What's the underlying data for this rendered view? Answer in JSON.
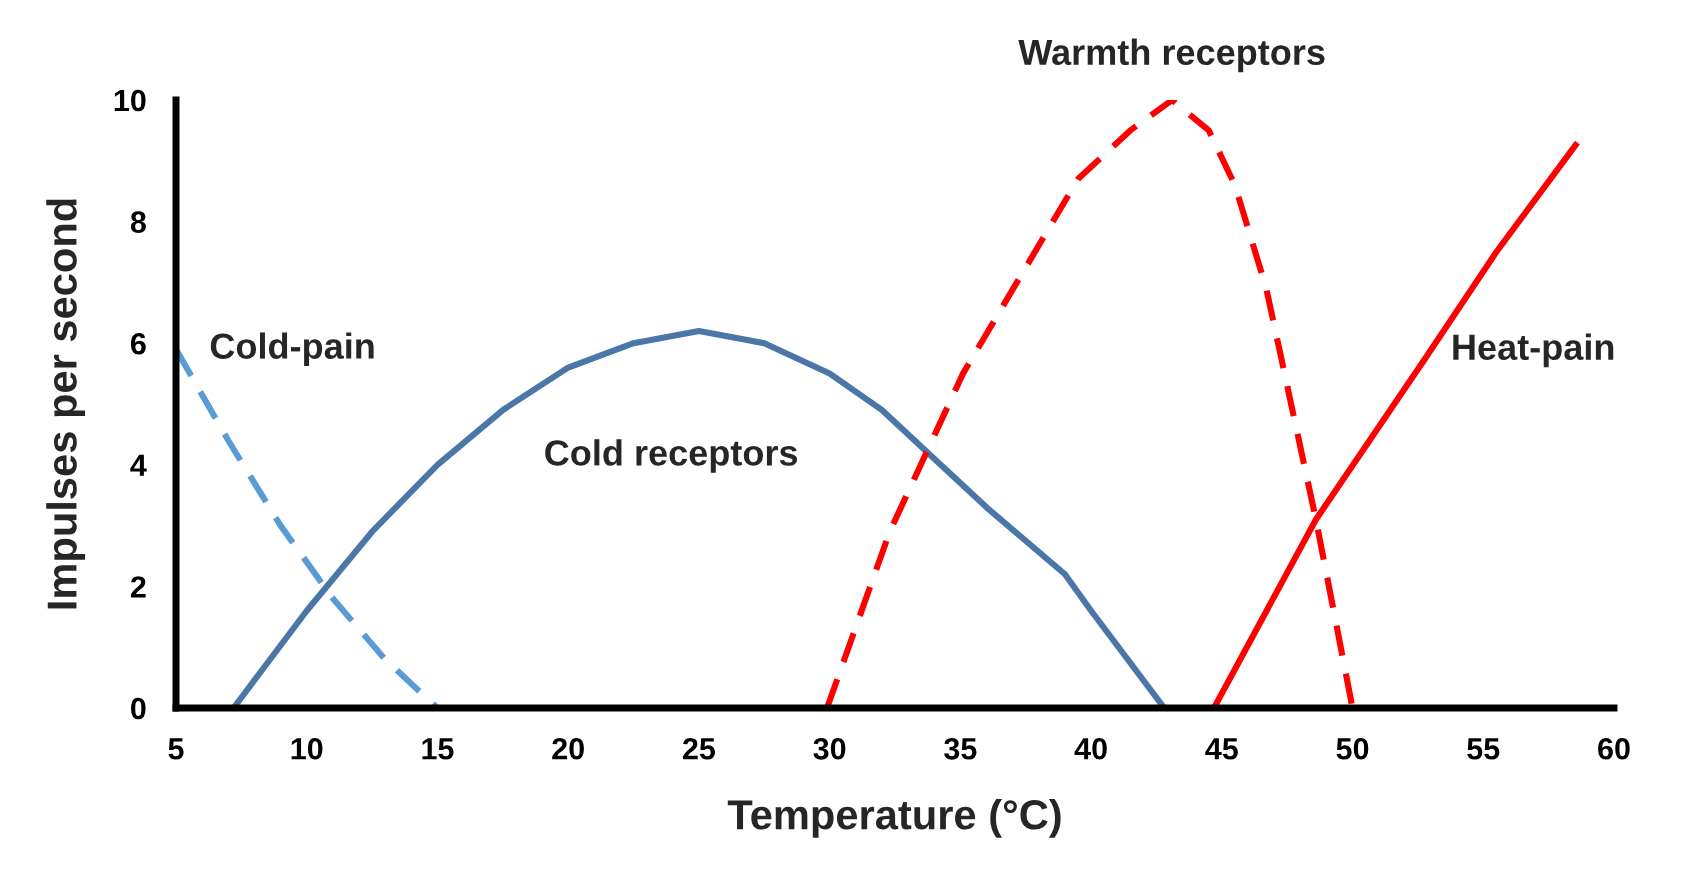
{
  "chart_data": {
    "type": "line",
    "xlabel": "Temperature (°C)",
    "ylabel": "Impulses per second",
    "xlim": [
      5,
      60
    ],
    "xticks": [
      5,
      10,
      15,
      20,
      25,
      30,
      35,
      40,
      45,
      50,
      55,
      60
    ],
    "ylim": [
      0,
      10
    ],
    "yticks": [
      0,
      2,
      4,
      6,
      8,
      10
    ],
    "grid": false,
    "legend": false,
    "marker": "none",
    "series": [
      {
        "name": "Cold-pain",
        "color": "#5b9bd5",
        "line_style": "dashed",
        "x": [
          5,
          7,
          9,
          11,
          13,
          15
        ],
        "values": [
          5.9,
          4.4,
          3.0,
          1.8,
          0.8,
          0
        ]
      },
      {
        "name": "Cold receptors",
        "color": "#4a76a8",
        "line_style": "solid",
        "x": [
          7.2,
          10,
          12.5,
          15,
          17.5,
          20,
          22.5,
          25,
          27.5,
          30,
          32,
          34,
          36,
          39,
          40,
          42.8
        ],
        "values": [
          0,
          1.6,
          2.9,
          4.0,
          4.9,
          5.6,
          6.0,
          6.2,
          6.0,
          5.5,
          4.9,
          4.1,
          3.3,
          2.2,
          1.6,
          0
        ]
      },
      {
        "name": "Warmth receptors",
        "color": "#ff0000",
        "line_style": "dashed",
        "x": [
          29.9,
          32.3,
          35.1,
          37.3,
          39.5,
          41.5,
          43.1,
          44.5,
          45.5,
          46.7,
          48.6,
          50
        ],
        "values": [
          0,
          2.9,
          5.5,
          7.1,
          8.7,
          9.5,
          10,
          9.5,
          8.6,
          6.9,
          3.1,
          0
        ]
      },
      {
        "name": "Heat-pain",
        "color": "#ff0000",
        "line_style": "solid",
        "x": [
          44.7,
          48.6,
          52.7,
          55.5,
          58.6
        ],
        "values": [
          0,
          3.1,
          5.7,
          7.5,
          9.3
        ]
      }
    ]
  }
}
